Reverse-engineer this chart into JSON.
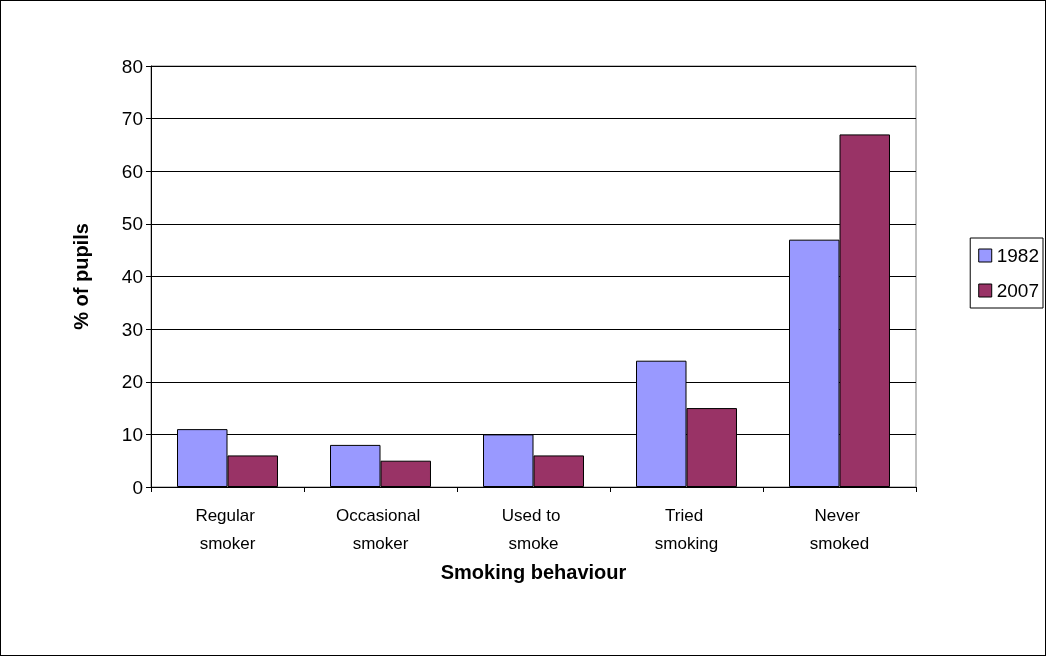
{
  "chart_data": {
    "type": "bar",
    "xlabel": "Smoking behaviour",
    "ylabel": "% of pupils",
    "categories": [
      "Regular smoker",
      "Occasional smoker",
      "Used to smoke",
      "Tried smoking",
      "Never smoked"
    ],
    "series": [
      {
        "name": "1982",
        "color": "#9999ff",
        "values": [
          11,
          8,
          10,
          24,
          47
        ]
      },
      {
        "name": "2007",
        "color": "#993366",
        "values": [
          6,
          5,
          6,
          15,
          67
        ]
      }
    ],
    "ylim": [
      0,
      80
    ],
    "yticks": [
      0,
      10,
      20,
      30,
      40,
      50,
      60,
      70,
      80
    ],
    "grid": "y",
    "legend": "right"
  }
}
